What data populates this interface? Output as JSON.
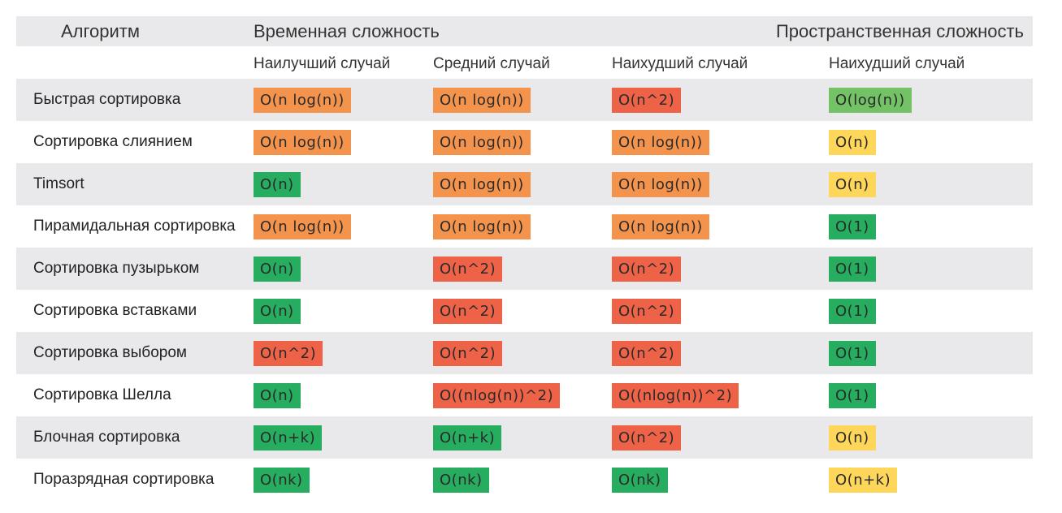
{
  "header": {
    "algorithm": "Алгоритм",
    "time": "Временная сложность",
    "space": "Пространственная сложность"
  },
  "subheader": {
    "best": "Наилучший случай",
    "average": "Средний случай",
    "worst": "Наихудший случай",
    "space_worst": "Наихудший случай"
  },
  "colors": {
    "orange": "#f4934b",
    "red": "#ee6248",
    "green": "#26ad5f",
    "yellow": "#fed75a",
    "lightgreen": "#73c266",
    "row_shade": "#e9e9eb"
  },
  "rows": [
    {
      "name": "Быстрая сортировка",
      "best": {
        "text": "O(n log(n))",
        "color": "orange"
      },
      "average": {
        "text": "O(n log(n))",
        "color": "orange"
      },
      "worst": {
        "text": "O(n^2)",
        "color": "red"
      },
      "space": {
        "text": "O(log(n))",
        "color": "lightgreen"
      }
    },
    {
      "name": "Сортировка слиянием",
      "best": {
        "text": "O(n log(n))",
        "color": "orange"
      },
      "average": {
        "text": "O(n log(n))",
        "color": "orange"
      },
      "worst": {
        "text": "O(n log(n))",
        "color": "orange"
      },
      "space": {
        "text": "O(n)",
        "color": "yellow"
      }
    },
    {
      "name": "Timsort",
      "best": {
        "text": "O(n)",
        "color": "green"
      },
      "average": {
        "text": "O(n log(n))",
        "color": "orange"
      },
      "worst": {
        "text": "O(n log(n))",
        "color": "orange"
      },
      "space": {
        "text": "O(n)",
        "color": "yellow"
      }
    },
    {
      "name": "Пирамидальная сортировка",
      "best": {
        "text": "O(n log(n))",
        "color": "orange"
      },
      "average": {
        "text": "O(n log(n))",
        "color": "orange"
      },
      "worst": {
        "text": "O(n log(n))",
        "color": "orange"
      },
      "space": {
        "text": "O(1)",
        "color": "green"
      }
    },
    {
      "name": "Сортировка пузырьком",
      "best": {
        "text": "O(n)",
        "color": "green"
      },
      "average": {
        "text": "O(n^2)",
        "color": "red"
      },
      "worst": {
        "text": "O(n^2)",
        "color": "red"
      },
      "space": {
        "text": "O(1)",
        "color": "green"
      }
    },
    {
      "name": "Сортировка вставками",
      "best": {
        "text": "O(n)",
        "color": "green"
      },
      "average": {
        "text": "O(n^2)",
        "color": "red"
      },
      "worst": {
        "text": "O(n^2)",
        "color": "red"
      },
      "space": {
        "text": "O(1)",
        "color": "green"
      }
    },
    {
      "name": "Сортировка выбором",
      "best": {
        "text": "O(n^2)",
        "color": "red"
      },
      "average": {
        "text": "O(n^2)",
        "color": "red"
      },
      "worst": {
        "text": "O(n^2)",
        "color": "red"
      },
      "space": {
        "text": "O(1)",
        "color": "green"
      }
    },
    {
      "name": "Сортировка Шелла",
      "best": {
        "text": "O(n)",
        "color": "green"
      },
      "average": {
        "text": "O((nlog(n))^2)",
        "color": "red"
      },
      "worst": {
        "text": "O((nlog(n))^2)",
        "color": "red"
      },
      "space": {
        "text": "O(1)",
        "color": "green"
      }
    },
    {
      "name": "Блочная сортировка",
      "best": {
        "text": "O(n+k)",
        "color": "green"
      },
      "average": {
        "text": "O(n+k)",
        "color": "green"
      },
      "worst": {
        "text": "O(n^2)",
        "color": "red"
      },
      "space": {
        "text": "O(n)",
        "color": "yellow"
      }
    },
    {
      "name": "Поразрядная сортировка",
      "best": {
        "text": "O(nk)",
        "color": "green"
      },
      "average": {
        "text": "O(nk)",
        "color": "green"
      },
      "worst": {
        "text": "O(nk)",
        "color": "green"
      },
      "space": {
        "text": "O(n+k)",
        "color": "yellow"
      }
    }
  ]
}
